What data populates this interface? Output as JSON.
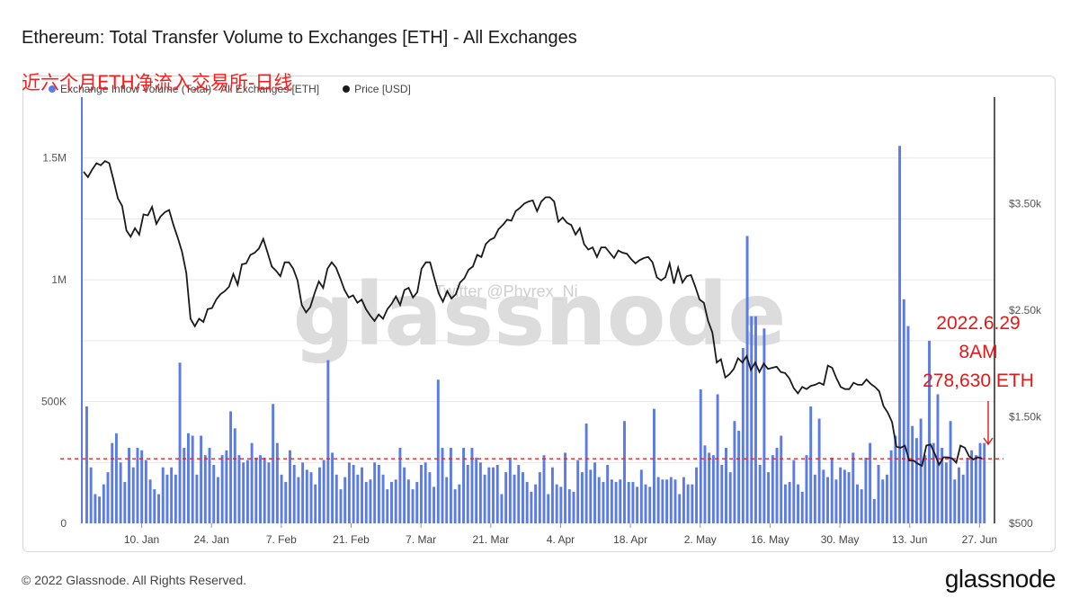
{
  "title": "Ethereum: Total Transfer Volume to Exchanges [ETH] - All Exchanges",
  "overlay_label": "近六个月ETH净流入交易所-日线",
  "watermark": "glassnode",
  "watermark_small": "Twitter @Phyrex_Ni",
  "footer": "© 2022 Glassnode. All Rights Reserved.",
  "brand": "glassnode",
  "annotation": {
    "line1": "2022.6.29",
    "line2": "8AM",
    "line3": "278,630 ETH"
  },
  "colors": {
    "bars": "#5b7be6",
    "price": "#1a1a1a",
    "dashed": "#ff1a1a",
    "annotation": "#e31919"
  },
  "chart_data": {
    "type": "bar",
    "legend": [
      "Exchange Inflow Volume (Total) - All Exchanges [ETH]",
      "Price [USD]"
    ],
    "legend_placement": "top-left",
    "x_range": [
      "2021-12-29",
      "2022-06-30"
    ],
    "x_ticks": [
      "10. Jan",
      "24. Jan",
      "7. Feb",
      "21. Feb",
      "7. Mar",
      "21. Mar",
      "4. Apr",
      "18. Apr",
      "2. May",
      "16. May",
      "30. May",
      "13. Jun",
      "27. Jun"
    ],
    "y_left": {
      "ticks": [
        "0",
        "500K",
        "1M",
        "1.5M"
      ],
      "tick_values": [
        0,
        500000,
        1000000,
        1500000
      ],
      "range": [
        0,
        1750000
      ]
    },
    "y_right": {
      "ticks": [
        "$500",
        "$1.50k",
        "$2.50k",
        "$3.50k"
      ],
      "tick_values": [
        500,
        1500,
        2500,
        3500
      ],
      "range": [
        500,
        4500
      ]
    },
    "reference_line": {
      "value": 265000,
      "style": "dashed"
    },
    "inflow_values": [
      480000,
      230000,
      120000,
      110000,
      160000,
      210000,
      330000,
      370000,
      250000,
      170000,
      310000,
      230000,
      310000,
      300000,
      260000,
      180000,
      140000,
      120000,
      230000,
      200000,
      230000,
      200000,
      660000,
      310000,
      370000,
      360000,
      200000,
      360000,
      280000,
      310000,
      240000,
      190000,
      280000,
      300000,
      460000,
      390000,
      280000,
      250000,
      260000,
      330000,
      270000,
      280000,
      270000,
      250000,
      490000,
      330000,
      200000,
      170000,
      300000,
      240000,
      190000,
      250000,
      220000,
      210000,
      160000,
      230000,
      260000,
      670000,
      290000,
      200000,
      140000,
      190000,
      250000,
      240000,
      200000,
      230000,
      170000,
      180000,
      250000,
      240000,
      200000,
      140000,
      170000,
      180000,
      310000,
      230000,
      180000,
      140000,
      170000,
      240000,
      250000,
      210000,
      150000,
      590000,
      310000,
      190000,
      310000,
      140000,
      160000,
      310000,
      240000,
      310000,
      270000,
      250000,
      200000,
      230000,
      230000,
      240000,
      120000,
      210000,
      270000,
      200000,
      240000,
      210000,
      170000,
      130000,
      160000,
      210000,
      280000,
      120000,
      230000,
      160000,
      150000,
      290000,
      140000,
      130000,
      260000,
      210000,
      410000,
      220000,
      250000,
      190000,
      170000,
      240000,
      180000,
      170000,
      180000,
      420000,
      170000,
      170000,
      150000,
      220000,
      160000,
      150000,
      470000,
      190000,
      180000,
      180000,
      190000,
      180000,
      120000,
      190000,
      160000,
      160000,
      230000,
      550000,
      320000,
      290000,
      280000,
      530000,
      240000,
      310000,
      210000,
      420000,
      380000,
      720000,
      1180000,
      850000,
      850000,
      240000,
      800000,
      210000,
      280000,
      310000,
      360000,
      160000,
      170000,
      260000,
      160000,
      130000,
      280000,
      480000,
      200000,
      430000,
      220000,
      190000,
      270000,
      180000,
      230000,
      220000,
      210000,
      290000,
      160000,
      140000,
      270000,
      330000,
      100000,
      240000,
      180000,
      200000,
      300000,
      360000,
      1550000,
      920000,
      810000,
      400000,
      350000,
      430000,
      280000,
      750000,
      330000,
      530000,
      310000,
      250000,
      420000,
      180000,
      230000,
      200000,
      270000,
      300000,
      280000,
      330000,
      330000
    ],
    "price_values": [
      3800,
      3750,
      3820,
      3880,
      3860,
      3900,
      3880,
      3720,
      3550,
      3480,
      3250,
      3190,
      3270,
      3210,
      3400,
      3390,
      3470,
      3310,
      3380,
      3420,
      3440,
      3300,
      3180,
      3050,
      2850,
      2420,
      2350,
      2420,
      2390,
      2510,
      2520,
      2600,
      2650,
      2680,
      2720,
      2840,
      2740,
      2930,
      2940,
      3020,
      3040,
      3080,
      3170,
      3040,
      2910,
      2870,
      2820,
      2950,
      2950,
      2890,
      2780,
      2550,
      2480,
      2530,
      2660,
      2770,
      2710,
      2890,
      2950,
      2900,
      2800,
      2690,
      2620,
      2640,
      2570,
      2600,
      2510,
      2450,
      2400,
      2460,
      2420,
      2510,
      2560,
      2630,
      2550,
      2690,
      2710,
      2620,
      2670,
      2890,
      2950,
      2950,
      2800,
      2660,
      2580,
      2680,
      2610,
      2650,
      2760,
      2800,
      2880,
      2910,
      3020,
      3000,
      3120,
      3160,
      3180,
      3260,
      3300,
      3350,
      3340,
      3430,
      3460,
      3500,
      3520,
      3530,
      3430,
      3520,
      3560,
      3560,
      3520,
      3330,
      3370,
      3320,
      3300,
      3210,
      3270,
      3120,
      3070,
      3090,
      3000,
      3090,
      3090,
      3040,
      2990,
      3060,
      3040,
      3030,
      2980,
      2940,
      2970,
      2990,
      3000,
      2950,
      2810,
      2780,
      2810,
      2940,
      2750,
      2900,
      2760,
      2820,
      2830,
      2720,
      2600,
      2570,
      2400,
      2290,
      2010,
      2040,
      1870,
      1900,
      1950,
      2050,
      2010,
      2070,
      1940,
      2010,
      1920,
      2000,
      1950,
      1960,
      1970,
      1920,
      1910,
      1860,
      1770,
      1720,
      1780,
      1760,
      1790,
      1800,
      1820,
      1800,
      1980,
      1960,
      1860,
      1780,
      1760,
      1760,
      1820,
      1800,
      1800,
      1850,
      1810,
      1780,
      1740,
      1600,
      1540,
      1450,
      1220,
      1210,
      1230,
      1090,
      1090,
      1060,
      1040,
      1230,
      1240,
      1150,
      1050,
      1120,
      1120,
      1110,
      1070,
      1230,
      1210,
      1130,
      1100,
      1120,
      1110
    ]
  }
}
